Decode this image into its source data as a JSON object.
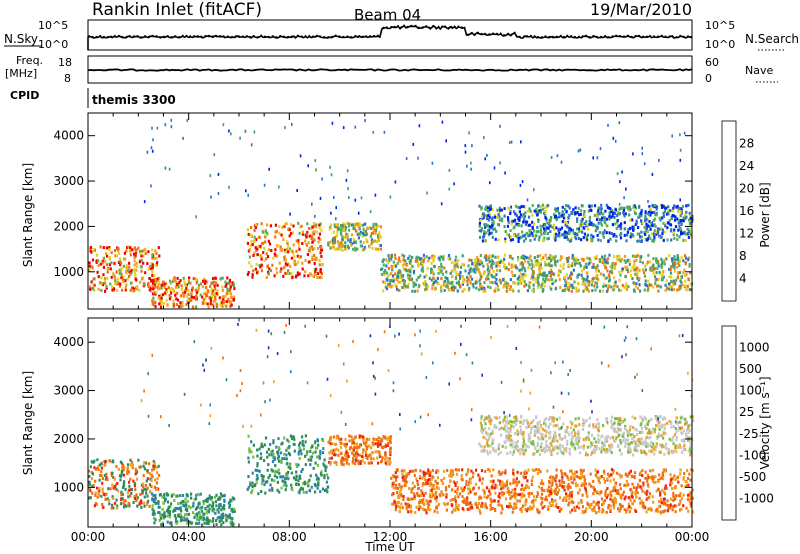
{
  "header": {
    "site": "Rankin Inlet (fitACF)",
    "beam": "Beam 04",
    "date": "19/Mar/2010"
  },
  "top_panels": {
    "nsky_label": "N.Sky",
    "nsky_ticks": [
      "10^5",
      "10^0"
    ],
    "nsearch_label": "N.Search",
    "nsearch_ticks": [
      "10^5",
      "10^0"
    ],
    "freq_label": "Freq.",
    "freq_unit": "[MHz]",
    "freq_ticks": [
      "18",
      "8"
    ],
    "nave_label": "Nave",
    "nave_ticks": [
      "60",
      "0"
    ],
    "cpid_label": "CPID",
    "cpid_value": "themis 3300"
  },
  "chart_data": [
    {
      "type": "heatmap",
      "quantity": "Power",
      "ylabel": "Slant Range [km]",
      "xlabel": "Time UT",
      "x_ticks": [
        "00:00",
        "04:00",
        "08:00",
        "12:00",
        "16:00",
        "20:00",
        "00:00"
      ],
      "y_ticks": [
        1000,
        2000,
        3000,
        4000
      ],
      "ylim": [
        180,
        4500
      ],
      "colorbar": {
        "label": "Power [dB]",
        "ticks": [
          "4",
          "8",
          "12",
          "16",
          "20",
          "24",
          "28"
        ],
        "colors": [
          "#0022ee",
          "#2a6fd0",
          "#3b9a78",
          "#56b05a",
          "#e8d020",
          "#f0a020",
          "#f07010",
          "#ee0000"
        ]
      },
      "regions": [
        {
          "t": [
            0.0,
            2.8
          ],
          "range": [
            600,
            1600
          ],
          "level": "high"
        },
        {
          "t": [
            2.5,
            5.8
          ],
          "range": [
            250,
            900
          ],
          "level": "high"
        },
        {
          "t": [
            6.3,
            9.3
          ],
          "range": [
            900,
            2100
          ],
          "level": "high"
        },
        {
          "t": [
            9.5,
            11.6
          ],
          "range": [
            1500,
            2100
          ],
          "level": "medium"
        },
        {
          "t": [
            11.6,
            24.0
          ],
          "range": [
            600,
            1400
          ],
          "level": "medium"
        },
        {
          "t": [
            15.5,
            24.0
          ],
          "range": [
            1700,
            2500
          ],
          "level": "low"
        }
      ]
    },
    {
      "type": "heatmap",
      "quantity": "Velocity",
      "ylabel": "Slant Range [km]",
      "xlabel": "Time UT",
      "x_ticks": [
        "00:00",
        "04:00",
        "08:00",
        "12:00",
        "16:00",
        "20:00",
        "00:00"
      ],
      "y_ticks": [
        1000,
        2000,
        3000,
        4000
      ],
      "ylim": [
        180,
        4500
      ],
      "colorbar": {
        "label": "Velocity [m s⁻¹]",
        "ticks": [
          "1000",
          "500",
          "100",
          "25",
          "-25",
          "-100",
          "-500",
          "-1000"
        ],
        "colors": [
          "#1030c0",
          "#2c80c0",
          "#2a8a60",
          "#78c040",
          "#c8c8c8",
          "#f0a020",
          "#f07010",
          "#ee2010",
          "#ee0000"
        ]
      },
      "regions": [
        {
          "t": [
            0.0,
            2.8
          ],
          "range": [
            600,
            1600
          ],
          "velocity": "mixed"
        },
        {
          "t": [
            2.5,
            5.8
          ],
          "range": [
            250,
            900
          ],
          "velocity": "positive"
        },
        {
          "t": [
            6.3,
            9.5
          ],
          "range": [
            900,
            2100
          ],
          "velocity": "positive"
        },
        {
          "t": [
            9.5,
            12.0
          ],
          "range": [
            1500,
            2100
          ],
          "velocity": "negative"
        },
        {
          "t": [
            12.0,
            24.0
          ],
          "range": [
            500,
            1400
          ],
          "velocity": "negative"
        },
        {
          "t": [
            15.5,
            24.0
          ],
          "range": [
            1700,
            2500
          ],
          "velocity": "near-zero"
        }
      ]
    }
  ]
}
